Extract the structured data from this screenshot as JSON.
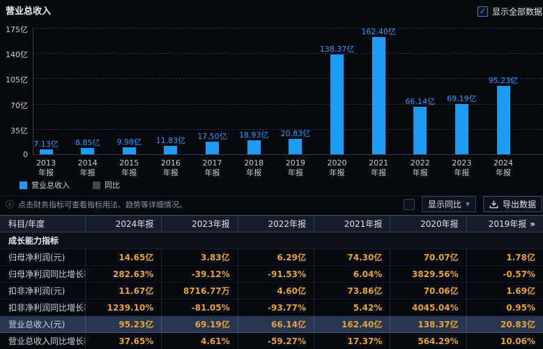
{
  "page": {
    "title": "营业总收入",
    "show_all_label": "显示全部数据"
  },
  "chart_data": {
    "type": "bar",
    "title": "营业总收入",
    "categories": [
      "2013年报",
      "2014年报",
      "2015年报",
      "2016年报",
      "2017年报",
      "2018年报",
      "2019年报",
      "2020年报",
      "2021年报",
      "2022年报",
      "2023年报",
      "2024年报"
    ],
    "values": [
      7.13,
      8.85,
      9.98,
      11.83,
      17.5,
      18.93,
      20.83,
      138.37,
      162.4,
      66.14,
      69.19,
      95.23
    ],
    "data_labels": [
      "7.13亿",
      "8.85亿",
      "9.98亿",
      "11.83亿",
      "17.50亿",
      "18.93亿",
      "20.83亿",
      "138.37亿",
      "162.40亿",
      "66.14亿",
      "69.19亿",
      "95.23亿"
    ],
    "unit": "亿",
    "y_ticks": [
      "175亿",
      "140亿",
      "105亿",
      "70亿",
      "35亿",
      "0"
    ],
    "ylim": [
      0,
      175
    ],
    "grid": "dashed-horizontal",
    "legend_position": "bottom-left",
    "bar_color": "#1e9bf5",
    "legend": [
      {
        "label": "营业总收入",
        "color": "#1e9bf5"
      },
      {
        "label": "同比",
        "color": "#40464e"
      }
    ]
  },
  "toolbar": {
    "info_text": "点击财务指标可查看指标用法、趋势等详细情况。",
    "show_yoy_label": "显示同比",
    "export_label": "导出数据"
  },
  "table": {
    "corner_header": "科目/年度",
    "year_headers": [
      "2024年报",
      "2023年报",
      "2022年报",
      "2021年报",
      "2020年报",
      "2019年报"
    ],
    "more_indicator": "»",
    "section_title": "成长能力指标",
    "rows": [
      {
        "label": "归母净利润(元)",
        "values": [
          "14.65亿",
          "3.83亿",
          "6.29亿",
          "74.30亿",
          "70.07亿",
          "1.78亿"
        ],
        "highlight": false
      },
      {
        "label": "归母净利润同比增长率",
        "values": [
          "282.63%",
          "-39.12%",
          "-91.53%",
          "6.04%",
          "3829.56%",
          "-0.57%"
        ],
        "highlight": false
      },
      {
        "label": "扣非净利润(元)",
        "values": [
          "11.67亿",
          "8716.77万",
          "4.60亿",
          "73.86亿",
          "70.06亿",
          "1.69亿"
        ],
        "highlight": false
      },
      {
        "label": "扣非净利润同比增长率",
        "values": [
          "1239.10%",
          "-81.05%",
          "-93.77%",
          "5.42%",
          "4045.04%",
          "0.95%"
        ],
        "highlight": false
      },
      {
        "label": "营业总收入(元)",
        "values": [
          "95.23亿",
          "69.19亿",
          "66.14亿",
          "162.40亿",
          "138.37亿",
          "20.83亿"
        ],
        "highlight": true
      },
      {
        "label": "营业总收入同比增长率",
        "values": [
          "37.65%",
          "4.61%",
          "-59.27%",
          "17.37%",
          "564.29%",
          "10.06%"
        ],
        "highlight": false
      }
    ]
  },
  "colors": {
    "background": "#05080c",
    "bar_blue": "#1e9bf5",
    "value_amber": "#e5a43d",
    "header_bg": "#161e2b",
    "highlight_row_bg": "#293650"
  }
}
